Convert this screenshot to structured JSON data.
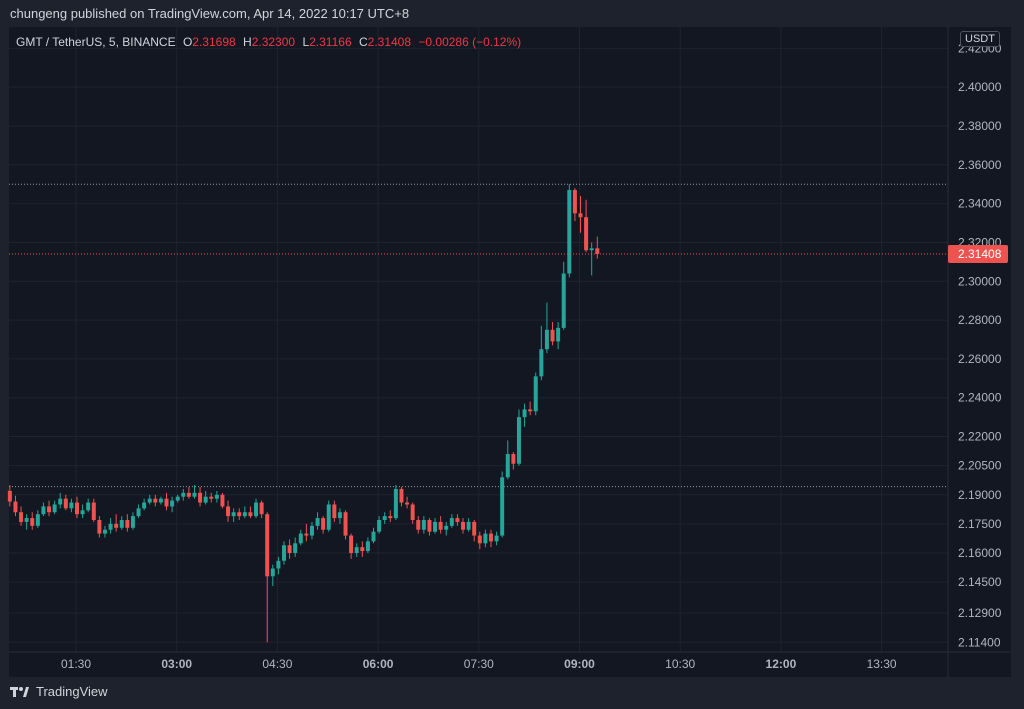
{
  "header": {
    "caption": "chungeng published on TradingView.com, Apr 14, 2022 10:17 UTC+8"
  },
  "legend": {
    "symbol": "GMT / TetherUS, 5, BINANCE",
    "o_label": "O",
    "o_value": "2.31698",
    "h_label": "H",
    "h_value": "2.32300",
    "l_label": "L",
    "l_value": "2.31166",
    "c_label": "C",
    "c_value": "2.31408",
    "change": "−0.00286 (−0.12%)"
  },
  "currency_badge": "USDT",
  "footer": {
    "brand": "TradingView"
  },
  "colors": {
    "up": "#26a69a",
    "down": "#ef5350",
    "background": "#131722",
    "grid": "#1f2330",
    "price_line": "#ef5350",
    "level_line": "#9598a1"
  },
  "chart_data": {
    "type": "candlestick",
    "title": "GMT / TetherUS, 5, BINANCE",
    "timeframe": "5m",
    "y_ticks": [
      "2.42000",
      "2.40000",
      "2.38000",
      "2.36000",
      "2.34000",
      "2.32000",
      "2.30000",
      "2.28000",
      "2.26000",
      "2.24000",
      "2.22000",
      "2.20500",
      "2.19000",
      "2.17500",
      "2.16000",
      "2.14500",
      "2.12900",
      "2.11400"
    ],
    "x_ticks": [
      {
        "label": "01:30",
        "hour": 1.5,
        "bold": false
      },
      {
        "label": "03:00",
        "hour": 3.0,
        "bold": true
      },
      {
        "label": "04:30",
        "hour": 4.5,
        "bold": false
      },
      {
        "label": "06:00",
        "hour": 6.0,
        "bold": true
      },
      {
        "label": "07:30",
        "hour": 7.5,
        "bold": false
      },
      {
        "label": "09:00",
        "hour": 9.0,
        "bold": true
      },
      {
        "label": "10:30",
        "hour": 10.5,
        "bold": false
      },
      {
        "label": "12:00",
        "hour": 12.0,
        "bold": true
      },
      {
        "label": "13:30",
        "hour": 13.5,
        "bold": false
      }
    ],
    "ylim": [
      2.109,
      2.431
    ],
    "last_price": "2.31408",
    "level_lines": [
      2.35,
      2.1942
    ],
    "start_hour": 0.5,
    "bar_minutes": 5,
    "candles": [
      [
        2.192,
        2.195,
        2.184,
        2.1865
      ],
      [
        2.1865,
        2.1895,
        2.179,
        2.181
      ],
      [
        2.181,
        2.184,
        2.174,
        2.176
      ],
      [
        2.176,
        2.18,
        2.172,
        2.178
      ],
      [
        2.178,
        2.181,
        2.172,
        2.174
      ],
      [
        2.174,
        2.182,
        2.173,
        2.18
      ],
      [
        2.18,
        2.186,
        2.179,
        2.184
      ],
      [
        2.184,
        2.187,
        2.179,
        2.181
      ],
      [
        2.181,
        2.187,
        2.18,
        2.185
      ],
      [
        2.185,
        2.191,
        2.183,
        2.188
      ],
      [
        2.188,
        2.19,
        2.182,
        2.183
      ],
      [
        2.183,
        2.188,
        2.181,
        2.186
      ],
      [
        2.186,
        2.189,
        2.178,
        2.18
      ],
      [
        2.18,
        2.185,
        2.178,
        2.182
      ],
      [
        2.182,
        2.188,
        2.181,
        2.186
      ],
      [
        2.186,
        2.188,
        2.176,
        2.177
      ],
      [
        2.177,
        2.179,
        2.168,
        2.17
      ],
      [
        2.17,
        2.174,
        2.168,
        2.172
      ],
      [
        2.172,
        2.178,
        2.17,
        2.175
      ],
      [
        2.175,
        2.18,
        2.171,
        2.173
      ],
      [
        2.173,
        2.179,
        2.172,
        2.177
      ],
      [
        2.177,
        2.18,
        2.171,
        2.173
      ],
      [
        2.173,
        2.181,
        2.172,
        2.179
      ],
      [
        2.179,
        2.185,
        2.178,
        2.183
      ],
      [
        2.183,
        2.188,
        2.182,
        2.186
      ],
      [
        2.186,
        2.19,
        2.185,
        2.188
      ],
      [
        2.188,
        2.19,
        2.184,
        2.186
      ],
      [
        2.186,
        2.189,
        2.185,
        2.188
      ],
      [
        2.188,
        2.191,
        2.182,
        2.184
      ],
      [
        2.184,
        2.189,
        2.181,
        2.187
      ],
      [
        2.187,
        2.19,
        2.186,
        2.189
      ],
      [
        2.189,
        2.193,
        2.187,
        2.191
      ],
      [
        2.191,
        2.194,
        2.188,
        2.189
      ],
      [
        2.189,
        2.195,
        2.188,
        2.191
      ],
      [
        2.191,
        2.194,
        2.184,
        2.186
      ],
      [
        2.186,
        2.192,
        2.185,
        2.189
      ],
      [
        2.189,
        2.191,
        2.186,
        2.188
      ],
      [
        2.188,
        2.192,
        2.186,
        2.19
      ],
      [
        2.19,
        2.191,
        2.183,
        2.184
      ],
      [
        2.184,
        2.187,
        2.176,
        2.179
      ],
      [
        2.179,
        2.183,
        2.176,
        2.181
      ],
      [
        2.181,
        2.183,
        2.177,
        2.179
      ],
      [
        2.179,
        2.184,
        2.178,
        2.181
      ],
      [
        2.181,
        2.184,
        2.178,
        2.179
      ],
      [
        2.179,
        2.188,
        2.178,
        2.186
      ],
      [
        2.186,
        2.187,
        2.178,
        2.18
      ],
      [
        2.18,
        2.181,
        2.114,
        2.148
      ],
      [
        2.148,
        2.154,
        2.143,
        2.152
      ],
      [
        2.152,
        2.158,
        2.149,
        2.156
      ],
      [
        2.156,
        2.166,
        2.154,
        2.164
      ],
      [
        2.164,
        2.167,
        2.157,
        2.16
      ],
      [
        2.16,
        2.168,
        2.158,
        2.165
      ],
      [
        2.165,
        2.172,
        2.164,
        2.17
      ],
      [
        2.17,
        2.175,
        2.166,
        2.169
      ],
      [
        2.169,
        2.176,
        2.167,
        2.174
      ],
      [
        2.174,
        2.181,
        2.172,
        2.178
      ],
      [
        2.178,
        2.179,
        2.17,
        2.172
      ],
      [
        2.172,
        2.187,
        2.171,
        2.185
      ],
      [
        2.185,
        2.187,
        2.176,
        2.178
      ],
      [
        2.178,
        2.183,
        2.175,
        2.181
      ],
      [
        2.181,
        2.182,
        2.167,
        2.169
      ],
      [
        2.169,
        2.17,
        2.157,
        2.16
      ],
      [
        2.16,
        2.165,
        2.158,
        2.163
      ],
      [
        2.163,
        2.166,
        2.158,
        2.161
      ],
      [
        2.161,
        2.168,
        2.16,
        2.166
      ],
      [
        2.166,
        2.173,
        2.165,
        2.171
      ],
      [
        2.171,
        2.179,
        2.17,
        2.177
      ],
      [
        2.177,
        2.181,
        2.175,
        2.179
      ],
      [
        2.179,
        2.182,
        2.176,
        2.178
      ],
      [
        2.178,
        2.195,
        2.177,
        2.193
      ],
      [
        2.193,
        2.194,
        2.184,
        2.186
      ],
      [
        2.186,
        2.189,
        2.183,
        2.185
      ],
      [
        2.185,
        2.186,
        2.175,
        2.177
      ],
      [
        2.177,
        2.179,
        2.17,
        2.172
      ],
      [
        2.172,
        2.179,
        2.17,
        2.177
      ],
      [
        2.177,
        2.178,
        2.169,
        2.171
      ],
      [
        2.171,
        2.178,
        2.17,
        2.176
      ],
      [
        2.176,
        2.179,
        2.17,
        2.172
      ],
      [
        2.172,
        2.176,
        2.169,
        2.174
      ],
      [
        2.174,
        2.18,
        2.173,
        2.178
      ],
      [
        2.178,
        2.18,
        2.174,
        2.176
      ],
      [
        2.176,
        2.178,
        2.17,
        2.172
      ],
      [
        2.172,
        2.178,
        2.171,
        2.176
      ],
      [
        2.176,
        2.177,
        2.166,
        2.169
      ],
      [
        2.169,
        2.171,
        2.162,
        2.165
      ],
      [
        2.165,
        2.172,
        2.163,
        2.17
      ],
      [
        2.17,
        2.172,
        2.163,
        2.166
      ],
      [
        2.166,
        2.171,
        2.164,
        2.169
      ],
      [
        2.169,
        2.202,
        2.168,
        2.199
      ],
      [
        2.199,
        2.218,
        2.198,
        2.211
      ],
      [
        2.211,
        2.212,
        2.203,
        2.206
      ],
      [
        2.206,
        2.234,
        2.205,
        2.23
      ],
      [
        2.23,
        2.237,
        2.225,
        2.234
      ],
      [
        2.234,
        2.238,
        2.231,
        2.233
      ],
      [
        2.233,
        2.253,
        2.231,
        2.251
      ],
      [
        2.251,
        2.277,
        2.249,
        2.265
      ],
      [
        2.265,
        2.289,
        2.263,
        2.275
      ],
      [
        2.275,
        2.279,
        2.267,
        2.269
      ],
      [
        2.269,
        2.279,
        2.265,
        2.276
      ],
      [
        2.276,
        2.31,
        2.275,
        2.304
      ],
      [
        2.304,
        2.35,
        2.302,
        2.347
      ],
      [
        2.347,
        2.348,
        2.331,
        2.335
      ],
      [
        2.335,
        2.344,
        2.325,
        2.333
      ],
      [
        2.333,
        2.342,
        2.315,
        2.316
      ],
      [
        2.316,
        2.32,
        2.303,
        2.317
      ],
      [
        2.317,
        2.323,
        2.3117,
        2.3141
      ]
    ]
  }
}
